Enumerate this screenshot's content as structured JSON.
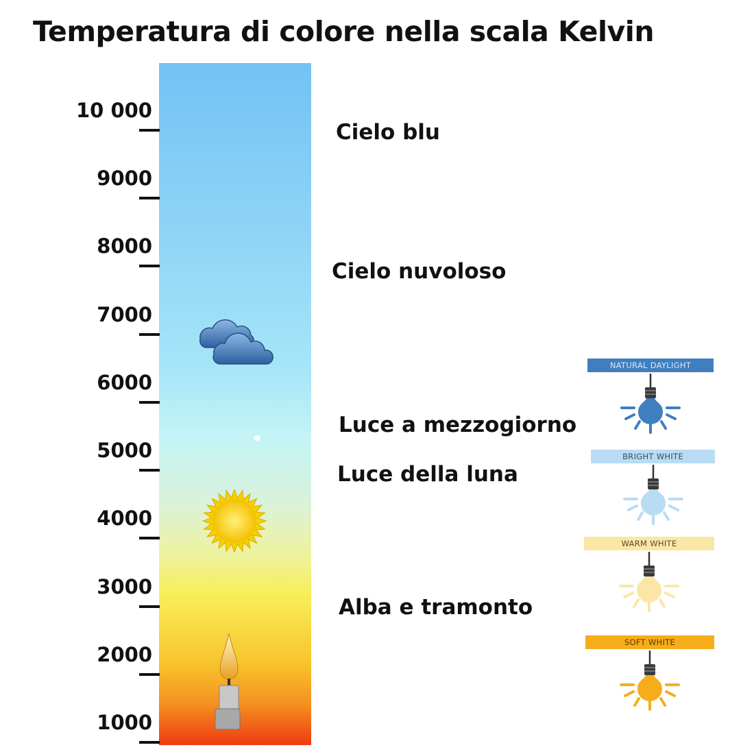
{
  "title": "Temperatura di colore nella scala Kelvin",
  "scale": {
    "unit": "Kelvin",
    "ticks": [
      "10 000",
      "9000",
      "8000",
      "7000",
      "6000",
      "5000",
      "4000",
      "3000",
      "2000",
      "1000"
    ],
    "tick_values": [
      10000,
      9000,
      8000,
      7000,
      6000,
      5000,
      4000,
      3000,
      2000,
      1000
    ]
  },
  "zones": [
    {
      "label": "Cielo blu"
    },
    {
      "label": "Cielo nuvoloso"
    },
    {
      "label": "Luce a mezzogiorno"
    },
    {
      "label": "Luce della luna"
    },
    {
      "label": "Alba e tramonto"
    }
  ],
  "illustrations": [
    "cloud-icon",
    "moon-icon",
    "sun-icon",
    "candle-icon"
  ],
  "bulbs": [
    {
      "label": "NATURAL DAYLIGHT",
      "color": "#3f7fbf",
      "text_color": "#dce8f4"
    },
    {
      "label": "BRIGHT WHITE",
      "color": "#b8dcf4",
      "text_color": "#3a4a5a"
    },
    {
      "label": "WARM WHITE",
      "color": "#fce6a6",
      "text_color": "#5a4a2a"
    },
    {
      "label": "SOFT WHITE",
      "color": "#f6ad1c",
      "text_color": "#5a3a00"
    }
  ]
}
